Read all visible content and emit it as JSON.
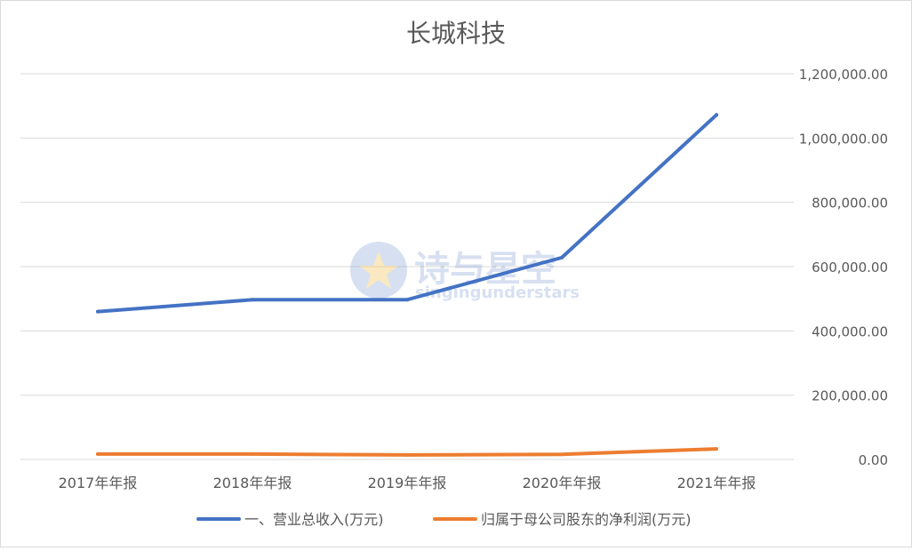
{
  "chart_data": {
    "type": "line",
    "title": "长城科技",
    "categories": [
      "2017年年报",
      "2018年年报",
      "2019年年报",
      "2020年年报",
      "2021年年报"
    ],
    "ylim": [
      0,
      1200000
    ],
    "yticks": [
      0,
      200000,
      400000,
      600000,
      800000,
      1000000,
      1200000
    ],
    "ytick_labels": [
      "0.00",
      "200,000.00",
      "400,000.00",
      "600,000.00",
      "800,000.00",
      "1,000,000.00",
      "1,200,000.00"
    ],
    "y_axis_side": "right",
    "grid": true,
    "legend_position": "bottom",
    "series": [
      {
        "name": "一、营业总收入(万元)",
        "color": "#4472C4",
        "values": [
          460000,
          497000,
          497000,
          628000,
          1072000
        ]
      },
      {
        "name": "归属于母公司股东的净利润(万元)",
        "color": "#ED7D31",
        "values": [
          17000,
          17000,
          14000,
          16000,
          33000
        ]
      }
    ]
  },
  "watermark": {
    "title": "诗与星空",
    "subtitle": "singingunderstars"
  }
}
